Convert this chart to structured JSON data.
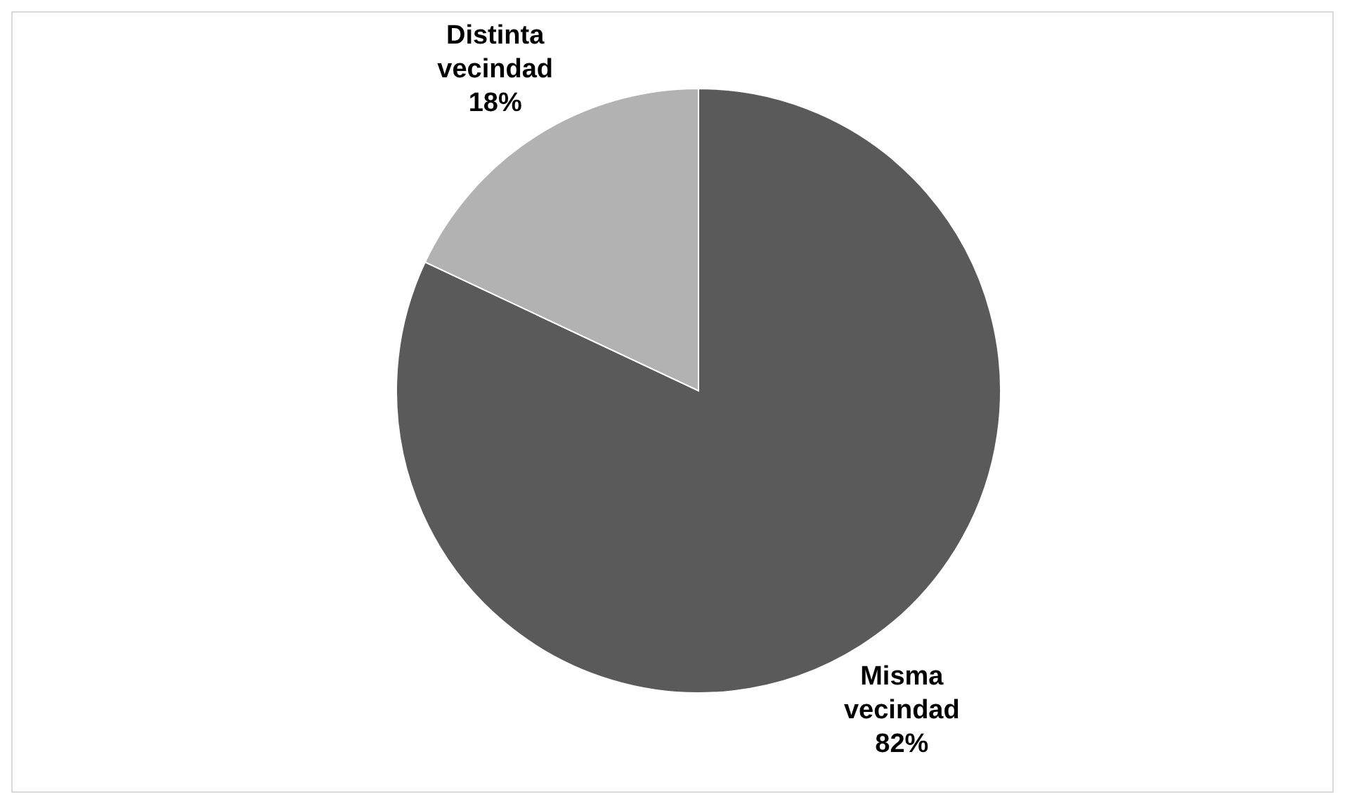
{
  "chart_data": {
    "type": "pie",
    "categories": [
      "Misma vecindad",
      "Distinta vecindad"
    ],
    "values": [
      82,
      18
    ],
    "colors": [
      "#5a5a5a",
      "#b2b2b2"
    ],
    "value_labels": [
      "82%",
      "18%"
    ]
  }
}
